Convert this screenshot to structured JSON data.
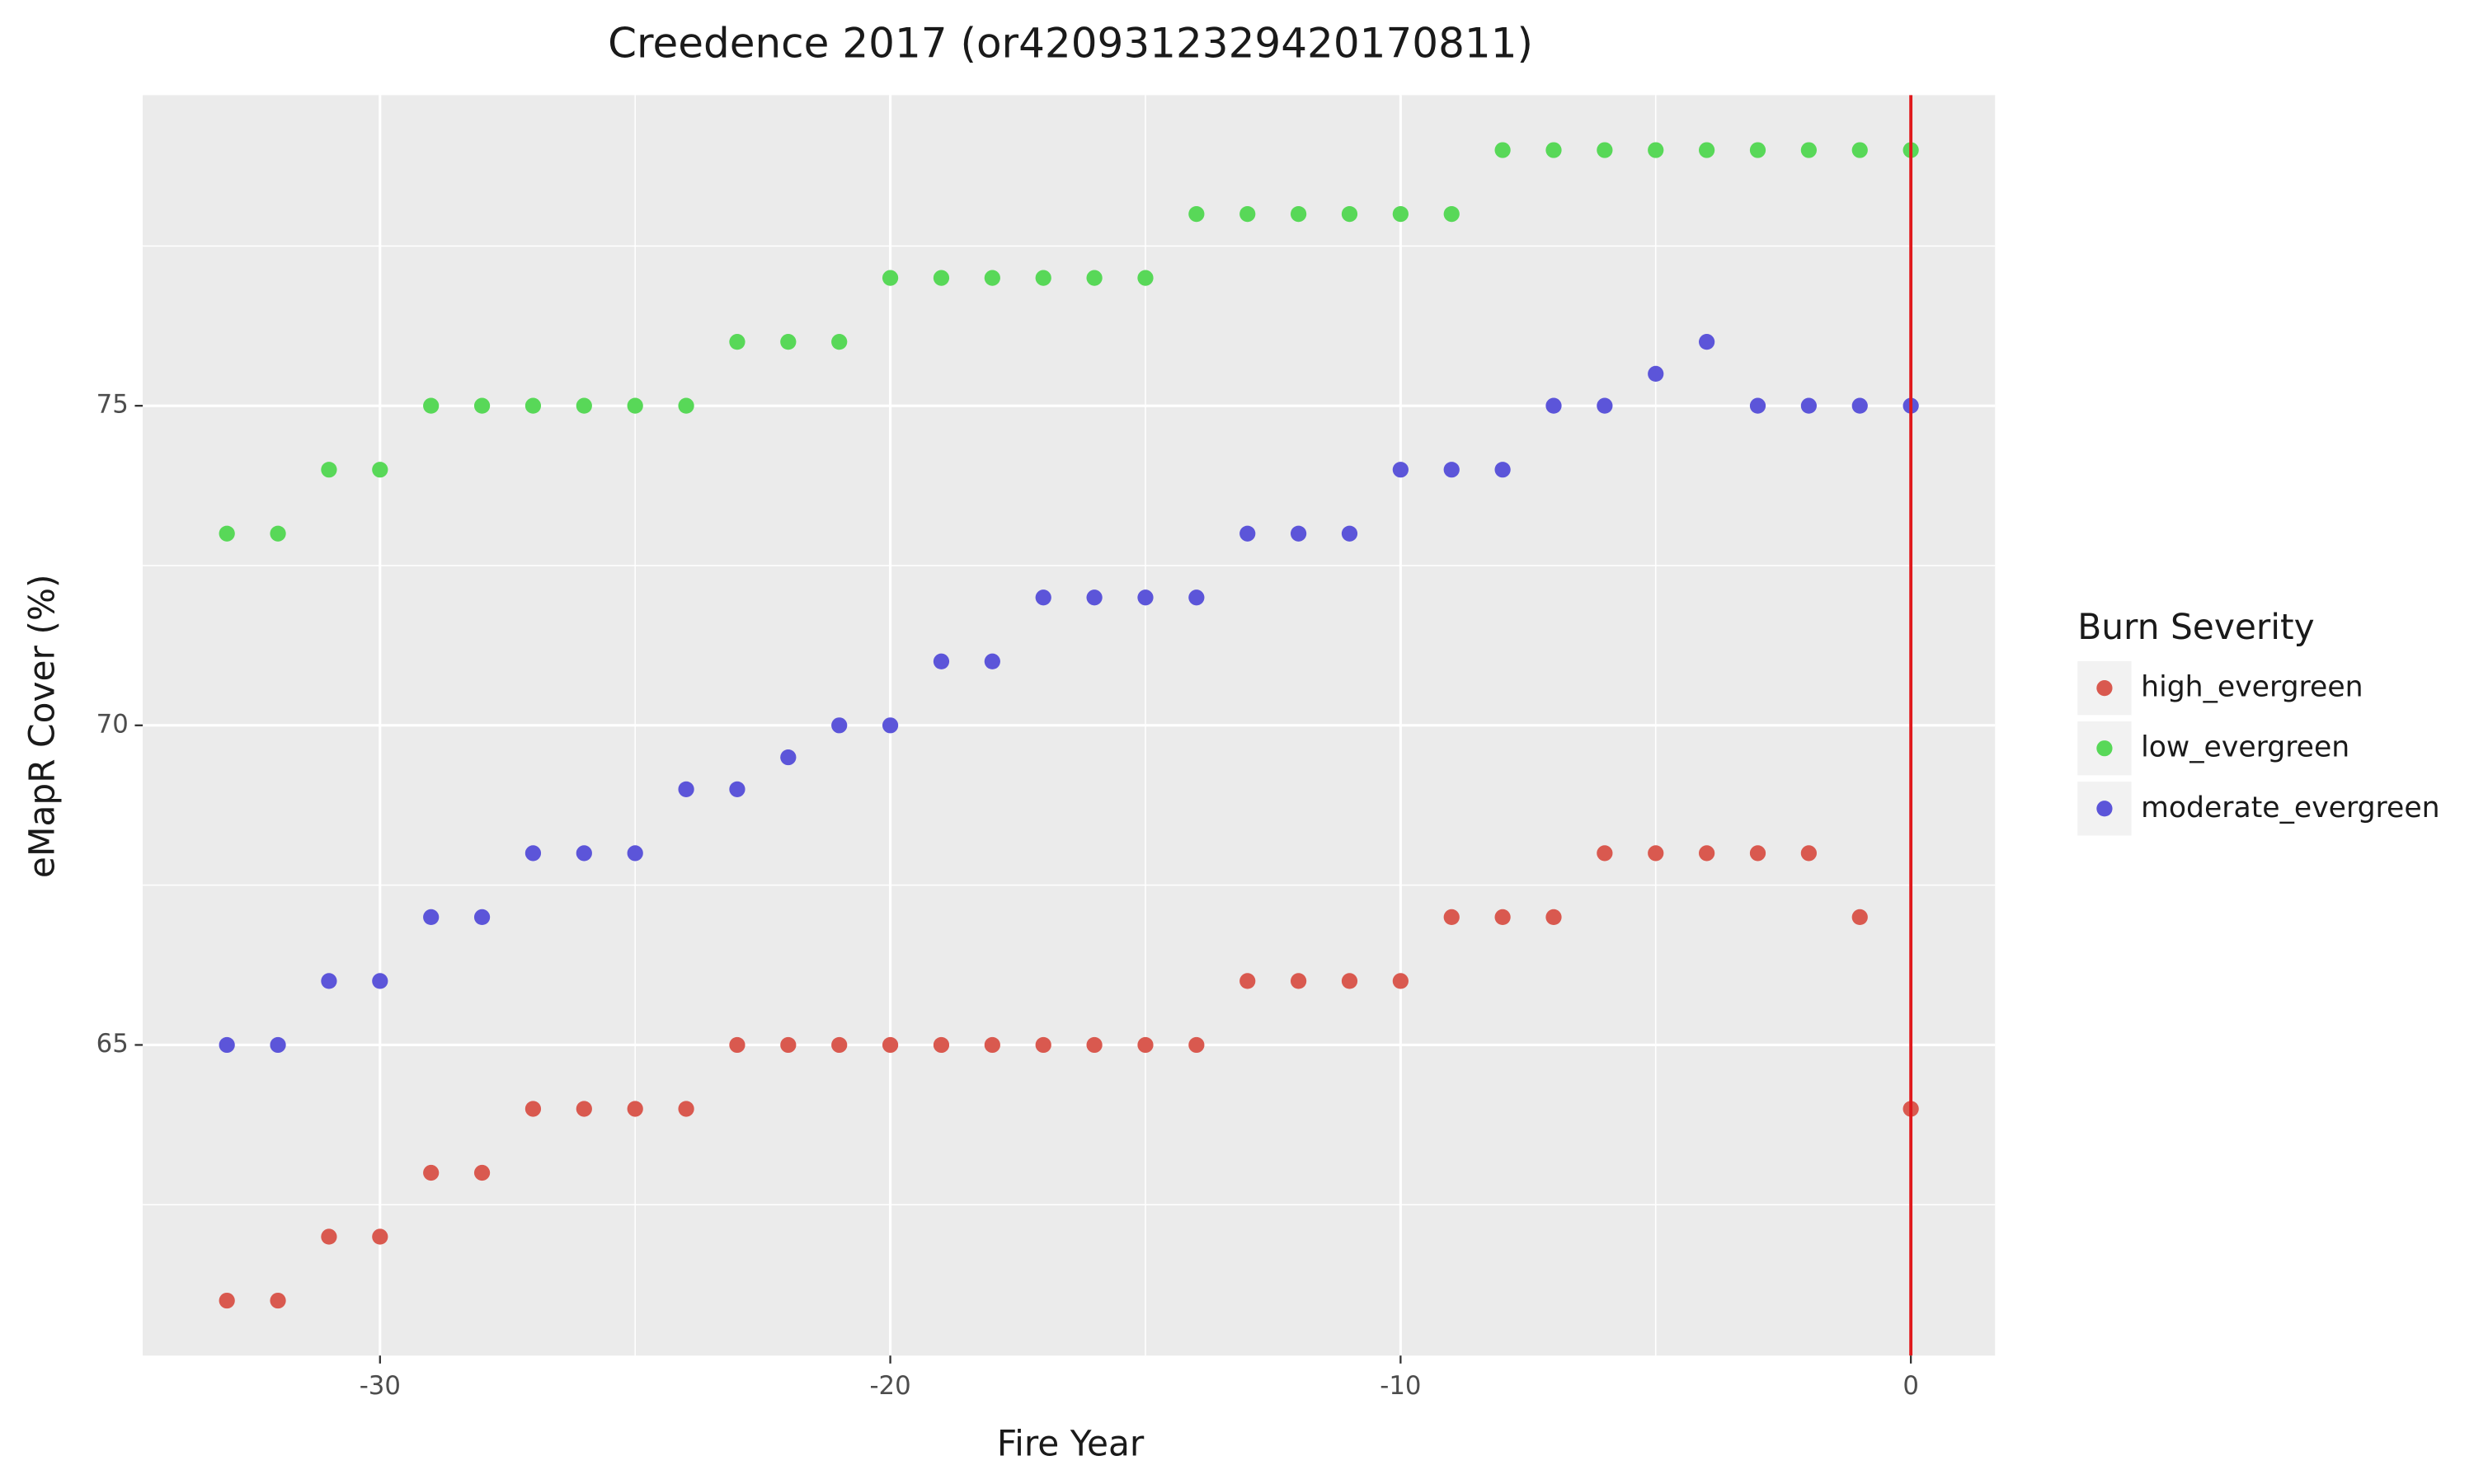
{
  "chart_data": {
    "type": "scatter",
    "title": "Creedence 2017 (or4209312329420170811)",
    "x_label": "Fire Year",
    "y_label": "eMapR Cover (%)",
    "x": [
      -33,
      -32,
      -31,
      -30,
      -29,
      -28,
      -27,
      -26,
      -25,
      -24,
      -23,
      -22,
      -21,
      -20,
      -19,
      -18,
      -17,
      -16,
      -15,
      -14,
      -13,
      -12,
      -11,
      -10,
      -9,
      -8,
      -7,
      -6,
      -5,
      -4,
      -3,
      -2,
      -1,
      0
    ],
    "series": [
      {
        "name": "high_evergreen",
        "color": "#d9594f",
        "values": [
          61,
          61,
          62,
          62,
          63,
          63,
          64,
          64,
          64,
          64,
          65,
          65,
          65,
          65,
          65,
          65,
          65,
          65,
          65,
          65,
          66,
          66,
          66,
          66,
          67,
          67,
          67,
          68,
          68,
          68,
          68,
          68,
          67,
          64
        ]
      },
      {
        "name": "low_evergreen",
        "color": "#58d858",
        "values": [
          73,
          73,
          74,
          74,
          75,
          75,
          75,
          75,
          75,
          75,
          76,
          76,
          76,
          77,
          77,
          77,
          77,
          77,
          77,
          78,
          78,
          78,
          78,
          78,
          78,
          79,
          79,
          79,
          79,
          79,
          79,
          79,
          79,
          79
        ]
      },
      {
        "name": "moderate_evergreen",
        "color": "#5c55d9",
        "values": [
          65,
          65,
          66,
          66,
          67,
          67,
          68,
          68,
          68,
          69,
          69,
          69.5,
          70,
          70,
          71,
          71,
          72,
          72,
          72,
          72,
          73,
          73,
          73,
          74,
          74,
          74,
          75,
          75,
          75.5,
          76,
          75,
          75,
          75,
          75
        ]
      }
    ],
    "legend_title": "Burn Severity",
    "legend": "right",
    "xlim": [
      -34.65,
      1.65
    ],
    "xticks": [
      -30,
      -20,
      -10,
      0
    ],
    "ylim": [
      60.14,
      79.86
    ],
    "yticks": [
      65,
      70,
      75
    ],
    "grid": true,
    "vline": {
      "x": 0,
      "color": "#e0191c"
    }
  }
}
